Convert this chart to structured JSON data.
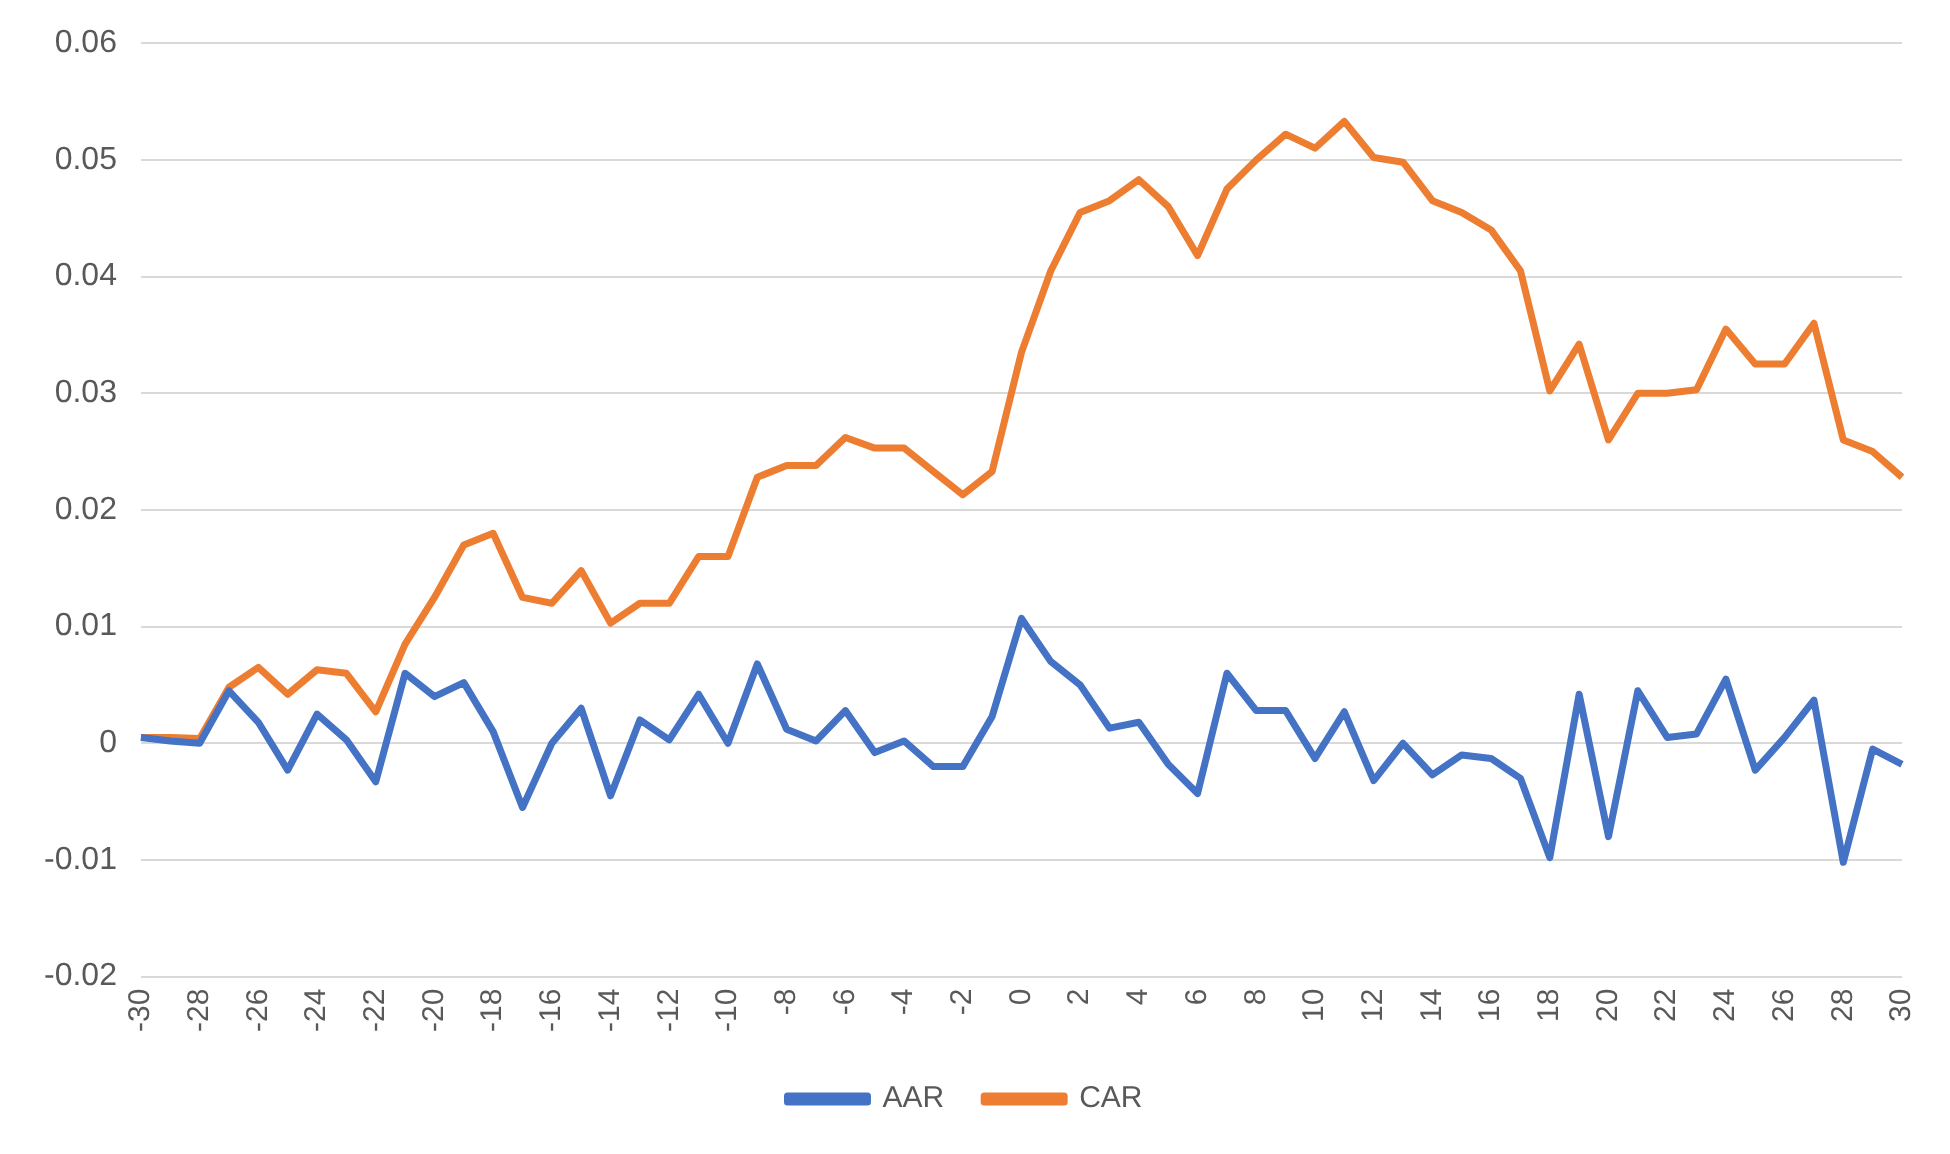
{
  "chart_data": {
    "type": "line",
    "categories": [
      "-30",
      null,
      "-28",
      null,
      "-26",
      null,
      "-24",
      null,
      "-22",
      null,
      "-20",
      null,
      "-18",
      null,
      "-16",
      null,
      "-14",
      null,
      "-12",
      null,
      "-10",
      null,
      "-8",
      null,
      "-6",
      null,
      "-4",
      null,
      "-2",
      null,
      "0",
      null,
      "2",
      null,
      "4",
      null,
      "6",
      null,
      "8",
      null,
      "10",
      null,
      "12",
      null,
      "14",
      null,
      "16",
      null,
      "18",
      null,
      "20",
      null,
      "22",
      null,
      "24",
      null,
      "26",
      null,
      "28",
      null,
      "30"
    ],
    "series": [
      {
        "name": "AAR",
        "color": "#4472c4",
        "values": [
          0.0005,
          0.0002,
          0,
          0.0045,
          0.0018,
          -0.0023,
          0.0025,
          0.0003,
          -0.0033,
          0.006,
          0.004,
          0.0052,
          0.001,
          -0.0055,
          0,
          0.003,
          -0.0045,
          0.002,
          0.0003,
          0.0042,
          0,
          0.0068,
          0.0012,
          0.0002,
          0.0028,
          -0.0008,
          0.0002,
          -0.002,
          -0.002,
          0.0023,
          0.0107,
          0.007,
          0.005,
          0.0013,
          0.0018,
          -0.0018,
          -0.0043,
          0.006,
          0.0028,
          0.0028,
          -0.0013,
          0.0027,
          -0.0032,
          0,
          -0.0027,
          -0.001,
          -0.0013,
          -0.003,
          -0.0098,
          0.0042,
          -0.008,
          0.0045,
          0.0005,
          0.0008,
          0.0055,
          -0.0023,
          0.0005,
          0.0037,
          -0.0102,
          -0.0005,
          -0.0018
        ]
      },
      {
        "name": "CAR",
        "color": "#ed7d31",
        "values": [
          0.0005,
          0.0005,
          0.0004,
          0.0048,
          0.0065,
          0.0042,
          0.0063,
          0.006,
          0.0027,
          0.0085,
          0.0125,
          0.017,
          0.018,
          0.0125,
          0.012,
          0.0148,
          0.0103,
          0.012,
          0.012,
          0.016,
          0.016,
          0.0228,
          0.0238,
          0.0238,
          0.0262,
          0.0253,
          0.0253,
          0.0233,
          0.0213,
          0.0233,
          0.0335,
          0.0405,
          0.0455,
          0.0465,
          0.0483,
          0.046,
          0.0418,
          0.0475,
          0.05,
          0.0522,
          0.051,
          0.0533,
          0.0502,
          0.0498,
          0.0465,
          0.0455,
          0.044,
          0.0405,
          0.0302,
          0.0342,
          0.026,
          0.03,
          0.03,
          0.0303,
          0.0355,
          0.0325,
          0.0325,
          0.036,
          0.026,
          0.025,
          0.0228
        ]
      }
    ],
    "ylim": [
      -0.02,
      0.06
    ],
    "yticks": [
      -0.02,
      -0.01,
      0,
      0.01,
      0.02,
      0.03,
      0.04,
      0.05,
      0.06
    ],
    "grid": "y",
    "legend": "bottom",
    "marker": "none",
    "line_style": "solid"
  }
}
